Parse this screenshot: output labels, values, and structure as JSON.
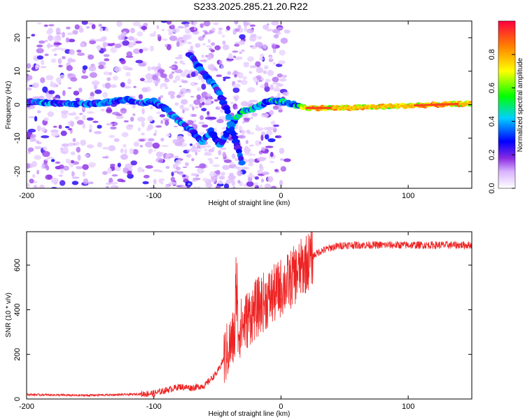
{
  "chart_data": [
    {
      "type": "heatmap",
      "title": "S233.2025.285.21.20.R22",
      "xlabel": "Height of straight line (km)",
      "ylabel": "Frequency (Hz)",
      "xlim": [
        -200,
        150
      ],
      "ylim": [
        -25,
        25
      ],
      "xticks": [
        -200,
        -100,
        0,
        100
      ],
      "yticks": [
        -20,
        -10,
        0,
        10,
        20
      ],
      "colorbar": {
        "label": "Normalized spectral amplitude",
        "range": [
          0.0,
          1.0
        ],
        "ticks": [
          "0.0",
          "0.2",
          "0.4",
          "0.6",
          "0.8"
        ],
        "colors": [
          "#ffffff",
          "#d9b3ff",
          "#8a2be2",
          "#0000ff",
          "#00d0ff",
          "#00ff00",
          "#ffff00",
          "#ff8000",
          "#ff0040"
        ]
      },
      "ridges": [
        {
          "name": "main trace",
          "points": [
            [
              -200,
              0.8
            ],
            [
              -180,
              0.5
            ],
            [
              -160,
              0.2
            ],
            [
              -140,
              0.5
            ],
            [
              -120,
              1.5
            ],
            [
              -110,
              0.5
            ],
            [
              -100,
              1.0
            ],
            [
              -90,
              -1.5
            ],
            [
              -80,
              -5
            ],
            [
              -70,
              -8
            ],
            [
              -62,
              -11
            ],
            [
              -55,
              -8
            ],
            [
              -48,
              -12
            ],
            [
              -40,
              -7
            ],
            [
              -35,
              -4
            ],
            [
              -30,
              -2
            ],
            [
              -20,
              -1
            ],
            [
              -10,
              1
            ],
            [
              0,
              1
            ],
            [
              10,
              0
            ],
            [
              20,
              -1
            ],
            [
              50,
              -1
            ],
            [
              80,
              -0.6
            ],
            [
              100,
              -0.3
            ],
            [
              130,
              0.1
            ],
            [
              150,
              0.3
            ]
          ]
        },
        {
          "name": "upper branch",
          "points": [
            [
              -72,
              15
            ],
            [
              -62,
              10
            ],
            [
              -55,
              7
            ],
            [
              -48,
              3
            ],
            [
              -42,
              -2
            ],
            [
              -38,
              -8
            ],
            [
              -33,
              -14
            ],
            [
              -30,
              -18
            ]
          ]
        }
      ]
    },
    {
      "type": "line",
      "xlabel": "Height of straight line (km)",
      "ylabel": "SNR (10 * v/v)",
      "xlim": [
        -200,
        150
      ],
      "ylim": [
        0,
        750
      ],
      "xticks": [
        -200,
        -100,
        0,
        100
      ],
      "yticks": [
        0,
        200,
        400,
        600
      ],
      "series": [
        {
          "name": "SNR",
          "color": "#ee2222",
          "x": [
            -200,
            -180,
            -160,
            -140,
            -120,
            -100,
            -90,
            -80,
            -70,
            -60,
            -50,
            -45,
            -40,
            -35,
            -30,
            -25,
            -20,
            -15,
            -10,
            -5,
            0,
            5,
            10,
            15,
            20,
            25,
            30,
            40,
            50,
            60,
            80,
            100,
            120,
            140,
            150
          ],
          "values": [
            20,
            18,
            16,
            18,
            20,
            25,
            40,
            55,
            50,
            60,
            120,
            180,
            240,
            300,
            330,
            370,
            400,
            430,
            450,
            470,
            500,
            520,
            550,
            580,
            610,
            640,
            660,
            680,
            690,
            690,
            690,
            690,
            690,
            690,
            690
          ]
        }
      ]
    }
  ]
}
